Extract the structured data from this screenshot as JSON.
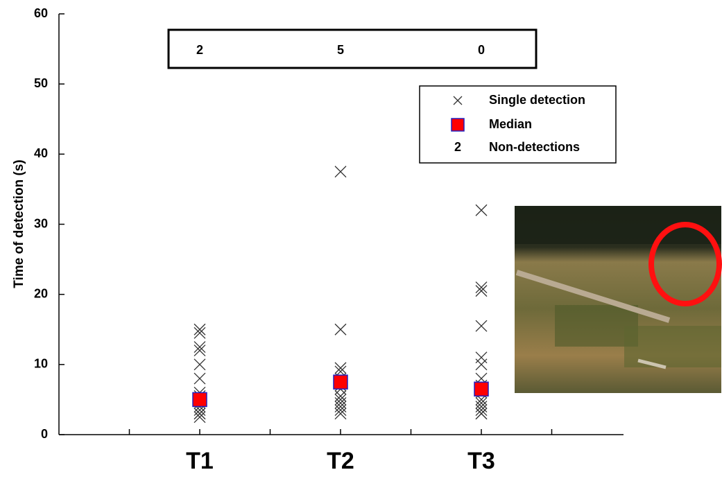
{
  "chart_data": {
    "type": "scatter",
    "y_label": "Time of detection (s)",
    "xlim": [
      0,
      4
    ],
    "xticks": [
      {
        "value": 1,
        "label": "T1"
      },
      {
        "value": 2,
        "label": "T2"
      },
      {
        "value": 3,
        "label": "T3"
      }
    ],
    "x_minor_ticks": [
      0.5,
      1.5,
      2.5,
      3.5
    ],
    "ylim": [
      0,
      60
    ],
    "yticks": [
      0,
      10,
      20,
      30,
      40,
      50,
      60
    ],
    "series": [
      {
        "name": "Single detection",
        "marker": "x",
        "color": "#333333",
        "values": [
          [
            15,
            14.5,
            12.5,
            12,
            10,
            8,
            6,
            5.5,
            5,
            4.5,
            4,
            3.5,
            3,
            3,
            2.5
          ],
          [
            37.5,
            15,
            9.5,
            9,
            8,
            7,
            6.5,
            5.5,
            5,
            4.5,
            4,
            3.5,
            3
          ],
          [
            32,
            21,
            20.5,
            15.5,
            11,
            10,
            8,
            7,
            6,
            5,
            4.5,
            4,
            3.5,
            3,
            3
          ]
        ]
      },
      {
        "name": "Median",
        "marker": "square",
        "color": "#ff0000",
        "edge_color": "#2020c0",
        "values": [
          5,
          7.5,
          6.5
        ]
      }
    ],
    "nondetections": {
      "name": "Non-detections",
      "symbol": "2",
      "values": [
        2,
        5,
        0
      ]
    }
  }
}
